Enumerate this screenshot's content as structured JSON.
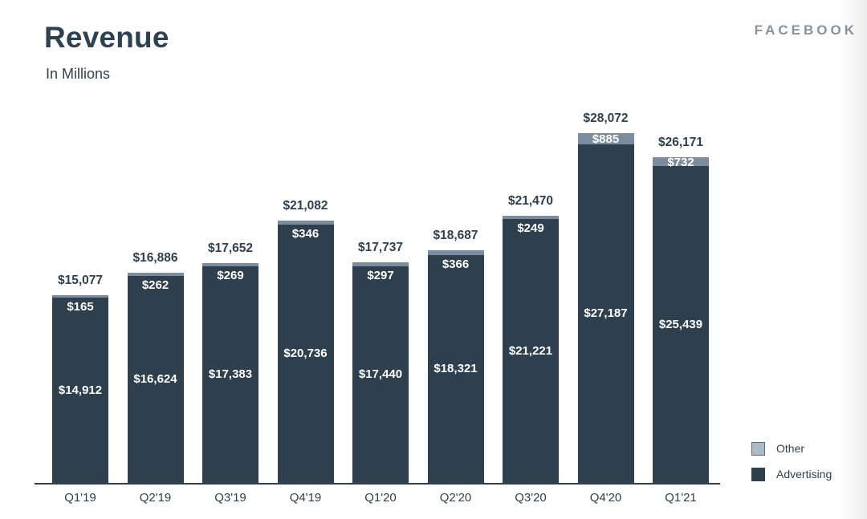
{
  "header": {
    "title": "Revenue",
    "subtitle": "In Millions",
    "brand": "FACEBOOK"
  },
  "chart_data": {
    "type": "bar",
    "stacked": true,
    "title": "Revenue",
    "subtitle": "In Millions",
    "unit": "USD millions",
    "grid": false,
    "legend_position": "bottom-right",
    "value_prefix": "$",
    "categories": [
      "Q1'19",
      "Q2'19",
      "Q3'19",
      "Q4'19",
      "Q1'20",
      "Q2'20",
      "Q3'20",
      "Q4'20",
      "Q1'21"
    ],
    "series": [
      {
        "name": "Advertising",
        "color": "#2e3f4e",
        "values": [
          14912,
          16624,
          17383,
          20736,
          17440,
          18321,
          21221,
          27187,
          25439
        ]
      },
      {
        "name": "Other",
        "color": "#7a8c9e",
        "values": [
          165,
          262,
          269,
          346,
          297,
          366,
          249,
          885,
          732
        ]
      }
    ],
    "totals": [
      15077,
      16886,
      17652,
      21082,
      17737,
      18687,
      21470,
      28072,
      26171
    ]
  },
  "legend": {
    "items": [
      {
        "label": "Other",
        "color": "#a9bac8",
        "border": "#5d6c7a"
      },
      {
        "label": "Advertising",
        "color": "#2e3f4e",
        "border": "#2e3f4e"
      }
    ]
  }
}
